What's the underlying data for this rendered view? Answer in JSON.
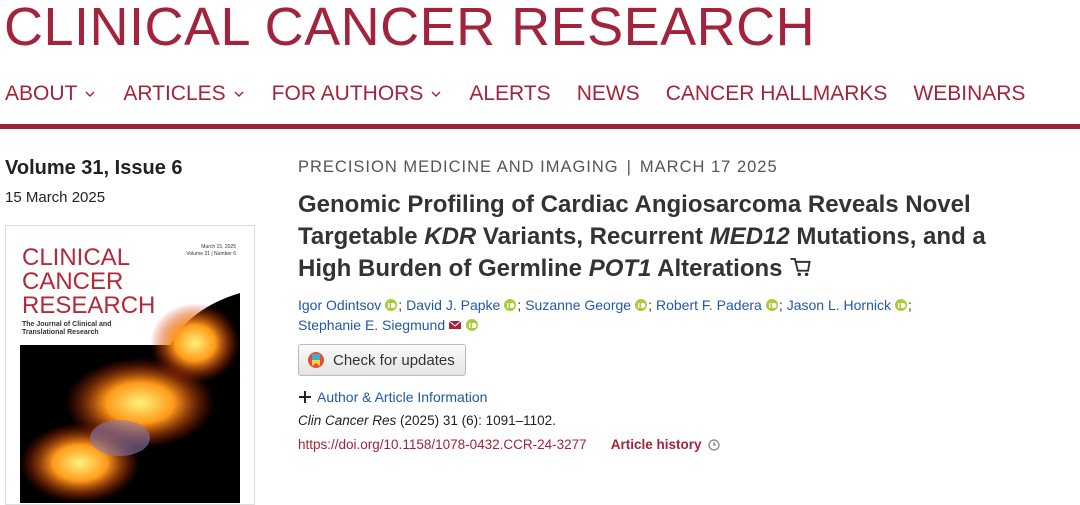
{
  "header": {
    "title": "CLINICAL CANCER RESEARCH",
    "nav": [
      "ABOUT",
      "ARTICLES",
      "FOR AUTHORS",
      "ALERTS",
      "NEWS",
      "CANCER HALLMARKS",
      "WEBINARS"
    ]
  },
  "sidebar": {
    "issue": "Volume 31, Issue 6",
    "date": "15 March 2025",
    "cover": {
      "title_lines": [
        "CLINICAL",
        "CANCER",
        "RESEARCH"
      ],
      "subtitle_lines": [
        "The Journal of Clinical and",
        "Translational Research"
      ],
      "date": "March 15, 2025",
      "volume": "Volume 31 | Number 6"
    }
  },
  "article": {
    "category": "PRECISION MEDICINE AND IMAGING",
    "separator": "|",
    "date": "MARCH 17 2025",
    "title": [
      {
        "text": "Genomic Profiling of Cardiac Angiosarcoma Reveals Novel Targetable ",
        "italic": false
      },
      {
        "text": "KDR",
        "italic": true
      },
      {
        "text": " Variants, Recurrent ",
        "italic": false
      },
      {
        "text": "MED12",
        "italic": true
      },
      {
        "text": " Mutations, and a High Burden of Germline ",
        "italic": false
      },
      {
        "text": "POT1",
        "italic": true
      },
      {
        "text": " Alterations",
        "italic": false
      }
    ],
    "authors": [
      "Igor Odintsov",
      "David J. Papke",
      "Suzanne George",
      "Robert F. Padera",
      "Jason L. Hornick",
      "Stephanie E. Siegmund"
    ],
    "author_separator": ";",
    "updates_button": "Check for updates",
    "info_link": "Author & Article Information",
    "citation": {
      "journal": "Clin Cancer Res",
      "details": " (2025) 31 (6): 1091–1102."
    },
    "doi": "https://doi.org/10.1158/1078-0432.CCR-24-3277",
    "history": "Article history"
  }
}
